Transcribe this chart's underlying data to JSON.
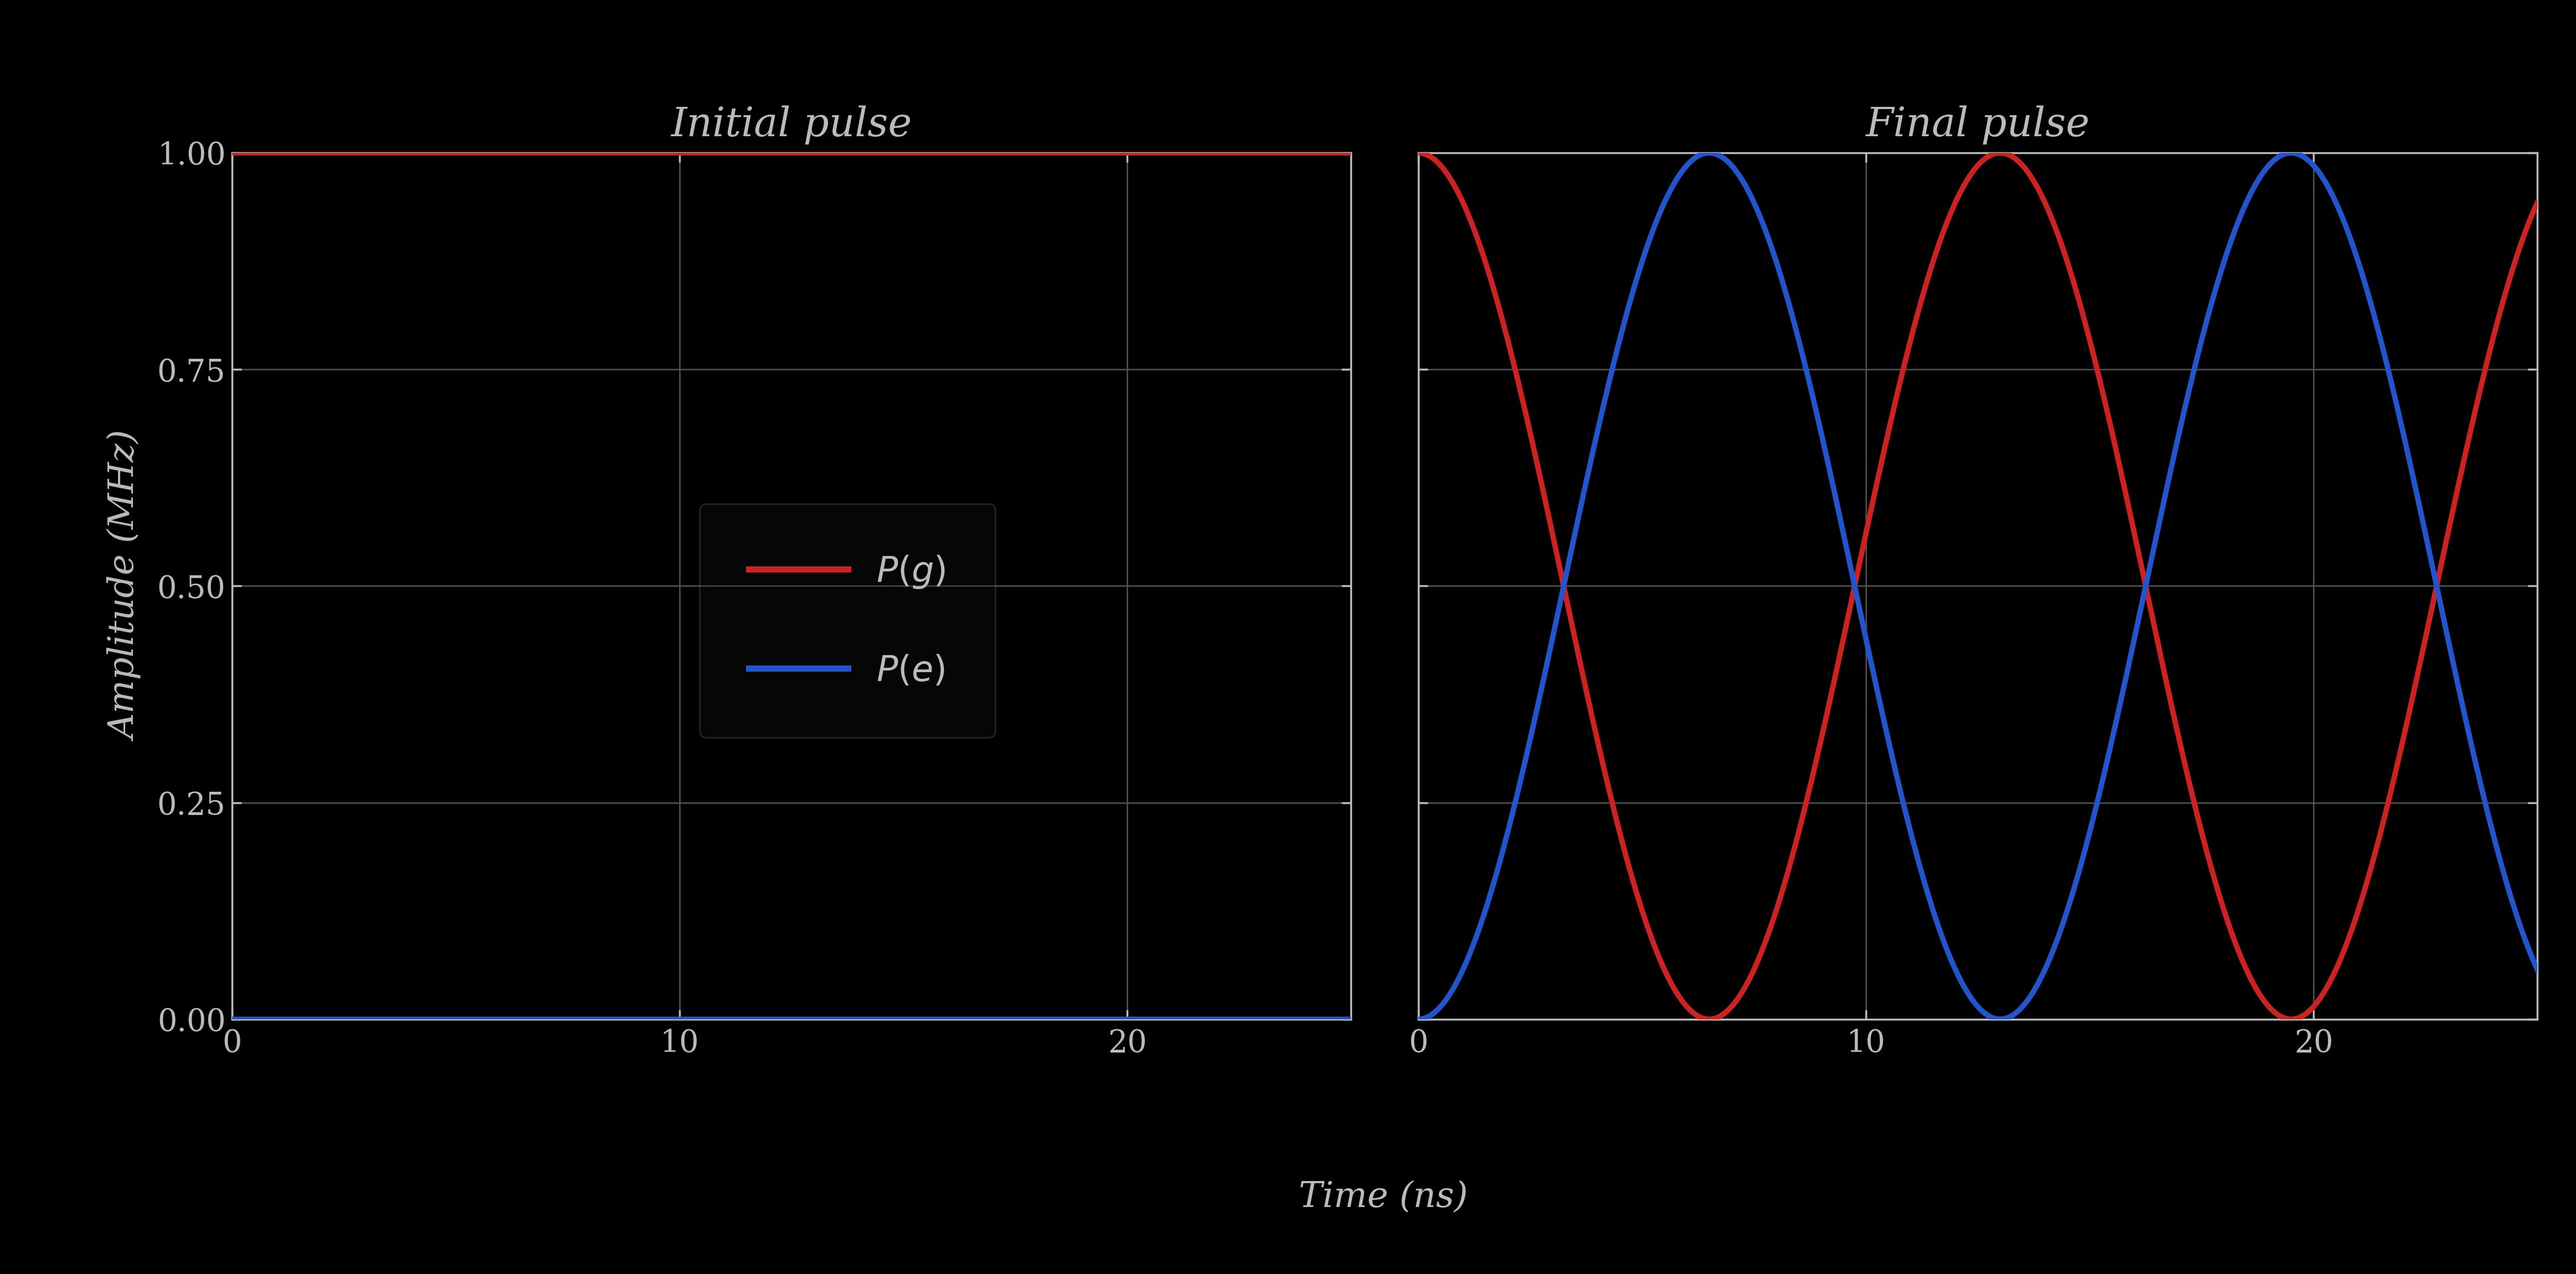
{
  "title_left": "Initial pulse",
  "title_right": "Final pulse",
  "xlabel": "Time (ns)",
  "ylabel": "Amplitude (MHz)",
  "ylim": [
    0.0,
    1.0
  ],
  "xlim_left": [
    0,
    25
  ],
  "xlim_right": [
    0,
    25
  ],
  "yticks": [
    0.0,
    0.25,
    0.5,
    0.75,
    1.0
  ],
  "xticks": [
    0,
    10,
    20
  ],
  "color_ground": "#cc2222",
  "color_excited": "#2255cc",
  "background_color": "#000000",
  "axes_facecolor": "#000000",
  "text_color": "#bbbbbb",
  "grid_color": "#555555",
  "line_width": 7.0,
  "title_fontsize": 52,
  "label_fontsize": 46,
  "tick_fontsize": 40,
  "legend_fontsize": 46,
  "num_points": 1000,
  "final_freq": 0.12,
  "final_phase_shift": 0.0
}
